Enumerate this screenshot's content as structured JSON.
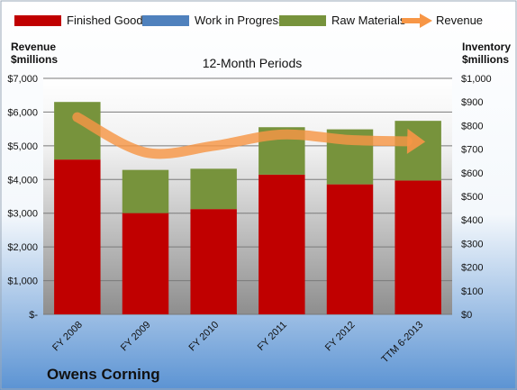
{
  "chart_data": {
    "type": "bar",
    "stacked": true,
    "title": "12-Month Periods",
    "company": "Owens Corning",
    "left_axis": {
      "label_line1": "Revenue",
      "label_line2": "$millions",
      "ylim": [
        0,
        7000
      ],
      "ticks": [
        "$-",
        "$1,000",
        "$2,000",
        "$3,000",
        "$4,000",
        "$5,000",
        "$6,000",
        "$7,000"
      ]
    },
    "right_axis": {
      "label_line1": "Inventory",
      "label_line2": "$millions",
      "ylim": [
        0,
        1000
      ],
      "ticks": [
        "$0",
        "$100",
        "$200",
        "$300",
        "$400",
        "$500",
        "$600",
        "$700",
        "$800",
        "$900",
        "$1,000"
      ]
    },
    "categories": [
      "FY 2008",
      "FY 2009",
      "FY 2010",
      "FY 2011",
      "FY 2012",
      "TTM 6-2013"
    ],
    "series": [
      {
        "name": "Finished Goods",
        "axis": "right",
        "type": "bar",
        "color": "#C00000",
        "values": [
          656,
          429,
          446,
          592,
          551,
          567
        ]
      },
      {
        "name": "Work in Progress",
        "axis": "right",
        "type": "bar",
        "color": "#4F81BD",
        "values": [
          0,
          0,
          0,
          0,
          0,
          0
        ]
      },
      {
        "name": "Raw Materials",
        "axis": "right",
        "type": "bar",
        "color": "#77933C",
        "values": [
          244,
          183,
          171,
          201,
          233,
          253
        ]
      },
      {
        "name": "Revenue",
        "axis": "left",
        "type": "line",
        "color": "#F79646",
        "values": [
          5847,
          4803,
          4997,
          5335,
          5172,
          5125
        ]
      }
    ],
    "grid": true,
    "legend_position": "top"
  }
}
